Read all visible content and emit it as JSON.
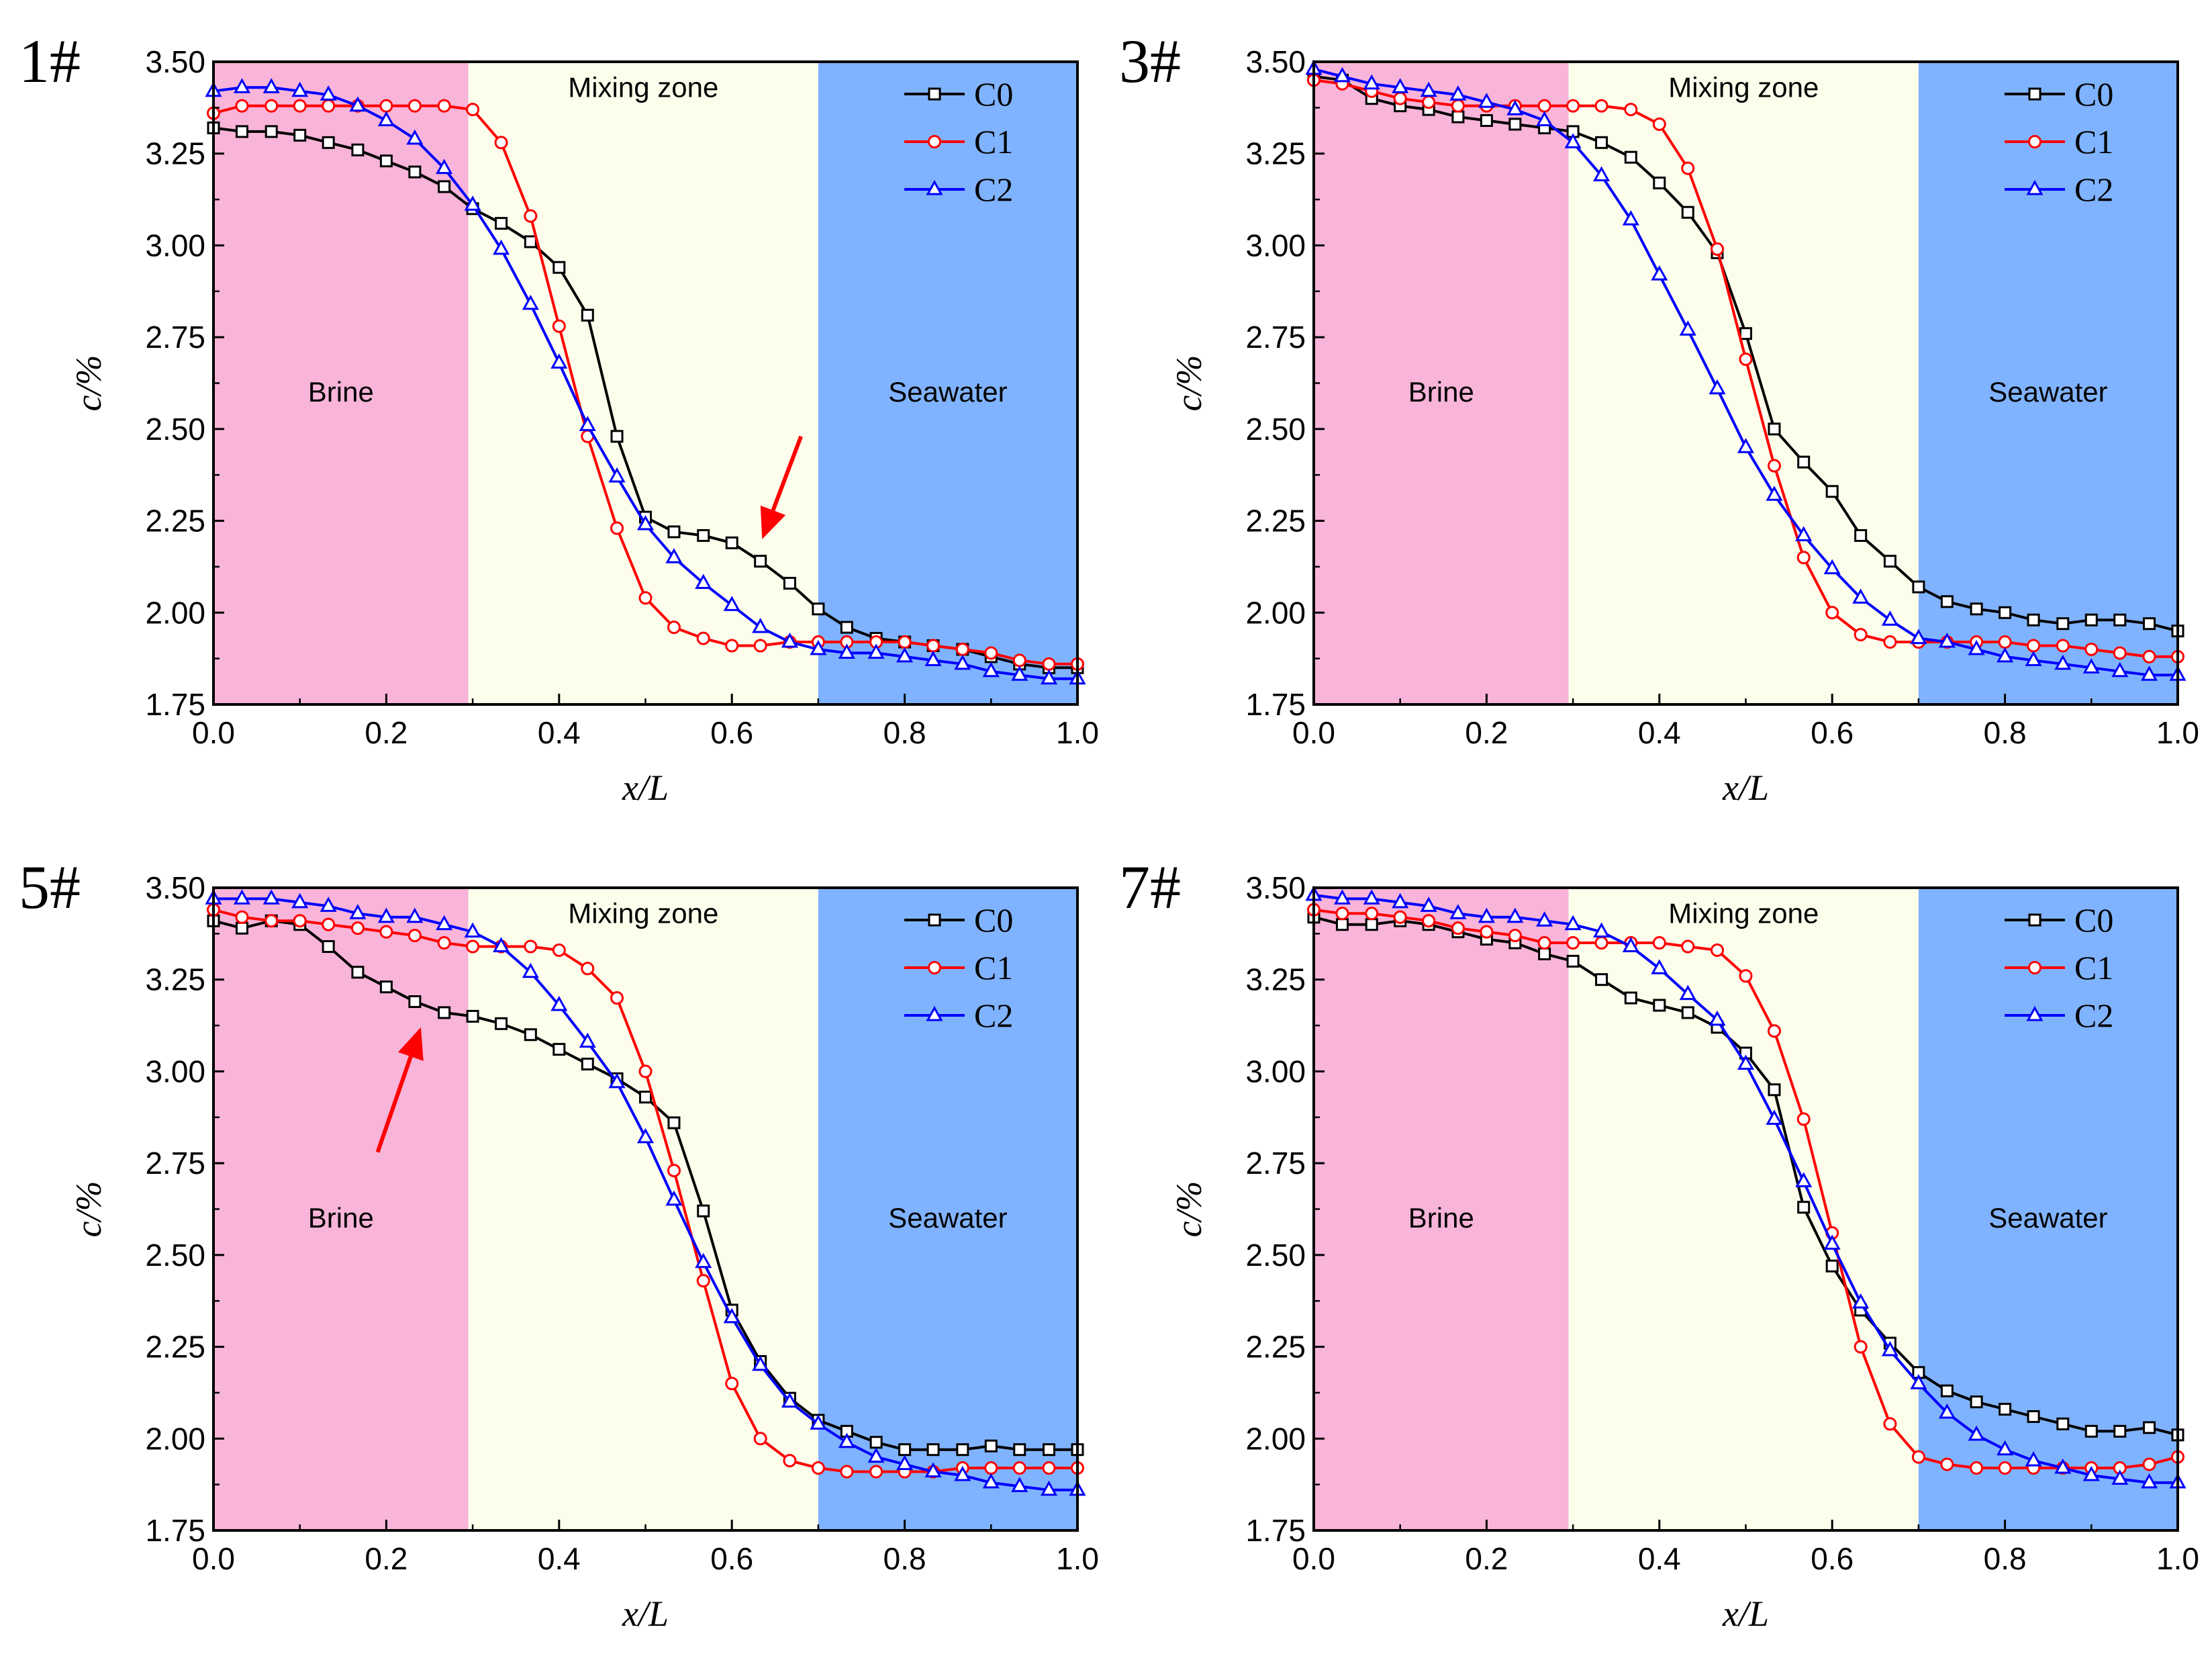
{
  "colors": {
    "brine": "#F8B4D9",
    "mixing": "#FDFDEC",
    "seawater": "#80B3FF",
    "C0": "#000000",
    "C1": "#FF0000",
    "C2": "#0000FF",
    "arrow": "#FF0000"
  },
  "chart_data": [
    {
      "type": "line",
      "panel_label": "1#",
      "xlabel": "x/L",
      "ylabel": "c/%",
      "xlim": [
        0.0,
        1.0
      ],
      "ylim": [
        1.75,
        3.5
      ],
      "xticks": [
        "0.0",
        "0.2",
        "0.4",
        "0.6",
        "0.8",
        "1.0"
      ],
      "yticks": [
        "1.75",
        "2.00",
        "2.25",
        "2.50",
        "2.75",
        "3.00",
        "3.25",
        "3.50"
      ],
      "regions": [
        {
          "name": "Brine",
          "from": 0.0,
          "to": 0.295,
          "color_key": "brine"
        },
        {
          "name": "Mixing zone",
          "from": 0.295,
          "to": 0.7,
          "color_key": "mixing"
        },
        {
          "name": "Seawater",
          "from": 0.7,
          "to": 1.0,
          "color_key": "seawater"
        }
      ],
      "legend": [
        "C0",
        "C1",
        "C2"
      ],
      "arrow": {
        "from": [
          0.68,
          2.48
        ],
        "to": [
          0.635,
          2.2
        ]
      },
      "x": [
        0.0,
        0.033,
        0.067,
        0.1,
        0.133,
        0.167,
        0.2,
        0.233,
        0.267,
        0.3,
        0.333,
        0.367,
        0.4,
        0.433,
        0.467,
        0.5,
        0.533,
        0.567,
        0.6,
        0.633,
        0.667,
        0.7,
        0.733,
        0.767,
        0.8,
        0.833,
        0.867,
        0.9,
        0.933,
        0.967,
        1.0
      ],
      "series": [
        {
          "name": "C0",
          "symbol": "square",
          "values": [
            3.32,
            3.31,
            3.31,
            3.3,
            3.28,
            3.26,
            3.23,
            3.2,
            3.16,
            3.1,
            3.06,
            3.01,
            2.94,
            2.81,
            2.48,
            2.26,
            2.22,
            2.21,
            2.19,
            2.14,
            2.08,
            2.01,
            1.96,
            1.93,
            1.92,
            1.91,
            1.9,
            1.88,
            1.86,
            1.85,
            1.85
          ]
        },
        {
          "name": "C1",
          "symbol": "circle",
          "values": [
            3.36,
            3.38,
            3.38,
            3.38,
            3.38,
            3.38,
            3.38,
            3.38,
            3.38,
            3.37,
            3.28,
            3.08,
            2.78,
            2.48,
            2.23,
            2.04,
            1.96,
            1.93,
            1.91,
            1.91,
            1.92,
            1.92,
            1.92,
            1.92,
            1.92,
            1.91,
            1.9,
            1.89,
            1.87,
            1.86,
            1.86
          ]
        },
        {
          "name": "C2",
          "symbol": "triangle",
          "values": [
            3.42,
            3.43,
            3.43,
            3.42,
            3.41,
            3.38,
            3.34,
            3.29,
            3.21,
            3.11,
            2.99,
            2.84,
            2.68,
            2.51,
            2.37,
            2.24,
            2.15,
            2.08,
            2.02,
            1.96,
            1.92,
            1.9,
            1.89,
            1.89,
            1.88,
            1.87,
            1.86,
            1.84,
            1.83,
            1.82,
            1.82
          ]
        }
      ]
    },
    {
      "type": "line",
      "panel_label": "3#",
      "xlabel": "x/L",
      "ylabel": "c/%",
      "xlim": [
        0.0,
        1.0
      ],
      "ylim": [
        1.75,
        3.5
      ],
      "xticks": [
        "0.0",
        "0.2",
        "0.4",
        "0.6",
        "0.8",
        "1.0"
      ],
      "yticks": [
        "1.75",
        "2.00",
        "2.25",
        "2.50",
        "2.75",
        "3.00",
        "3.25",
        "3.50"
      ],
      "regions": [
        {
          "name": "Brine",
          "from": 0.0,
          "to": 0.295,
          "color_key": "brine"
        },
        {
          "name": "Mixing zone",
          "from": 0.295,
          "to": 0.7,
          "color_key": "mixing"
        },
        {
          "name": "Seawater",
          "from": 0.7,
          "to": 1.0,
          "color_key": "seawater"
        }
      ],
      "legend": [
        "C0",
        "C1",
        "C2"
      ],
      "x": [
        0.0,
        0.033,
        0.067,
        0.1,
        0.133,
        0.167,
        0.2,
        0.233,
        0.267,
        0.3,
        0.333,
        0.367,
        0.4,
        0.433,
        0.467,
        0.5,
        0.533,
        0.567,
        0.6,
        0.633,
        0.667,
        0.7,
        0.733,
        0.767,
        0.8,
        0.833,
        0.867,
        0.9,
        0.933,
        0.967,
        1.0
      ],
      "series": [
        {
          "name": "C0",
          "symbol": "square",
          "values": [
            3.46,
            3.45,
            3.4,
            3.38,
            3.37,
            3.35,
            3.34,
            3.33,
            3.32,
            3.31,
            3.28,
            3.24,
            3.17,
            3.09,
            2.98,
            2.76,
            2.5,
            2.41,
            2.33,
            2.21,
            2.14,
            2.07,
            2.03,
            2.01,
            2.0,
            1.98,
            1.97,
            1.98,
            1.98,
            1.97,
            1.95
          ]
        },
        {
          "name": "C1",
          "symbol": "circle",
          "values": [
            3.45,
            3.44,
            3.42,
            3.4,
            3.39,
            3.38,
            3.38,
            3.38,
            3.38,
            3.38,
            3.38,
            3.37,
            3.33,
            3.21,
            2.99,
            2.69,
            2.4,
            2.15,
            2.0,
            1.94,
            1.92,
            1.92,
            1.92,
            1.92,
            1.92,
            1.91,
            1.91,
            1.9,
            1.89,
            1.88,
            1.88
          ]
        },
        {
          "name": "C2",
          "symbol": "triangle",
          "values": [
            3.48,
            3.46,
            3.44,
            3.43,
            3.42,
            3.41,
            3.39,
            3.37,
            3.34,
            3.28,
            3.19,
            3.07,
            2.92,
            2.77,
            2.61,
            2.45,
            2.32,
            2.21,
            2.12,
            2.04,
            1.98,
            1.93,
            1.92,
            1.9,
            1.88,
            1.87,
            1.86,
            1.85,
            1.84,
            1.83,
            1.83
          ]
        }
      ]
    },
    {
      "type": "line",
      "panel_label": "5#",
      "xlabel": "x/L",
      "ylabel": "c/%",
      "xlim": [
        0.0,
        1.0
      ],
      "ylim": [
        1.75,
        3.5
      ],
      "xticks": [
        "0.0",
        "0.2",
        "0.4",
        "0.6",
        "0.8",
        "1.0"
      ],
      "yticks": [
        "1.75",
        "2.00",
        "2.25",
        "2.50",
        "2.75",
        "3.00",
        "3.25",
        "3.50"
      ],
      "regions": [
        {
          "name": "Brine",
          "from": 0.0,
          "to": 0.295,
          "color_key": "brine"
        },
        {
          "name": "Mixing zone",
          "from": 0.295,
          "to": 0.7,
          "color_key": "mixing"
        },
        {
          "name": "Seawater",
          "from": 0.7,
          "to": 1.0,
          "color_key": "seawater"
        }
      ],
      "legend": [
        "C0",
        "C1",
        "C2"
      ],
      "arrow": {
        "from": [
          0.19,
          2.78
        ],
        "to": [
          0.24,
          3.12
        ]
      },
      "x": [
        0.0,
        0.033,
        0.067,
        0.1,
        0.133,
        0.167,
        0.2,
        0.233,
        0.267,
        0.3,
        0.333,
        0.367,
        0.4,
        0.433,
        0.467,
        0.5,
        0.533,
        0.567,
        0.6,
        0.633,
        0.667,
        0.7,
        0.733,
        0.767,
        0.8,
        0.833,
        0.867,
        0.9,
        0.933,
        0.967,
        1.0
      ],
      "series": [
        {
          "name": "C0",
          "symbol": "square",
          "values": [
            3.41,
            3.39,
            3.41,
            3.4,
            3.34,
            3.27,
            3.23,
            3.19,
            3.16,
            3.15,
            3.13,
            3.1,
            3.06,
            3.02,
            2.98,
            2.93,
            2.86,
            2.62,
            2.35,
            2.21,
            2.11,
            2.05,
            2.02,
            1.99,
            1.97,
            1.97,
            1.97,
            1.98,
            1.97,
            1.97,
            1.97
          ]
        },
        {
          "name": "C1",
          "symbol": "circle",
          "values": [
            3.44,
            3.42,
            3.41,
            3.41,
            3.4,
            3.39,
            3.38,
            3.37,
            3.35,
            3.34,
            3.34,
            3.34,
            3.33,
            3.28,
            3.2,
            3.0,
            2.73,
            2.43,
            2.15,
            2.0,
            1.94,
            1.92,
            1.91,
            1.91,
            1.91,
            1.91,
            1.92,
            1.92,
            1.92,
            1.92,
            1.92
          ]
        },
        {
          "name": "C2",
          "symbol": "triangle",
          "values": [
            3.47,
            3.47,
            3.47,
            3.46,
            3.45,
            3.43,
            3.42,
            3.42,
            3.4,
            3.38,
            3.34,
            3.27,
            3.18,
            3.08,
            2.97,
            2.82,
            2.65,
            2.48,
            2.33,
            2.2,
            2.1,
            2.04,
            1.99,
            1.95,
            1.93,
            1.91,
            1.9,
            1.88,
            1.87,
            1.86,
            1.86
          ]
        }
      ]
    },
    {
      "type": "line",
      "panel_label": "7#",
      "xlabel": "x/L",
      "ylabel": "c/%",
      "xlim": [
        0.0,
        1.0
      ],
      "ylim": [
        1.75,
        3.5
      ],
      "xticks": [
        "0.0",
        "0.2",
        "0.4",
        "0.6",
        "0.8",
        "1.0"
      ],
      "yticks": [
        "1.75",
        "2.00",
        "2.25",
        "2.50",
        "2.75",
        "3.00",
        "3.25",
        "3.50"
      ],
      "regions": [
        {
          "name": "Brine",
          "from": 0.0,
          "to": 0.295,
          "color_key": "brine"
        },
        {
          "name": "Mixing zone",
          "from": 0.295,
          "to": 0.7,
          "color_key": "mixing"
        },
        {
          "name": "Seawater",
          "from": 0.7,
          "to": 1.0,
          "color_key": "seawater"
        }
      ],
      "legend": [
        "C0",
        "C1",
        "C2"
      ],
      "x": [
        0.0,
        0.033,
        0.067,
        0.1,
        0.133,
        0.167,
        0.2,
        0.233,
        0.267,
        0.3,
        0.333,
        0.367,
        0.4,
        0.433,
        0.467,
        0.5,
        0.533,
        0.567,
        0.6,
        0.633,
        0.667,
        0.7,
        0.733,
        0.767,
        0.8,
        0.833,
        0.867,
        0.9,
        0.933,
        0.967,
        1.0
      ],
      "series": [
        {
          "name": "C0",
          "symbol": "square",
          "values": [
            3.42,
            3.4,
            3.4,
            3.41,
            3.4,
            3.38,
            3.36,
            3.35,
            3.32,
            3.3,
            3.25,
            3.2,
            3.18,
            3.16,
            3.12,
            3.05,
            2.95,
            2.63,
            2.47,
            2.35,
            2.26,
            2.18,
            2.13,
            2.1,
            2.08,
            2.06,
            2.04,
            2.02,
            2.02,
            2.03,
            2.01
          ]
        },
        {
          "name": "C1",
          "symbol": "circle",
          "values": [
            3.44,
            3.43,
            3.43,
            3.42,
            3.41,
            3.39,
            3.38,
            3.37,
            3.35,
            3.35,
            3.35,
            3.35,
            3.35,
            3.34,
            3.33,
            3.26,
            3.11,
            2.87,
            2.56,
            2.25,
            2.04,
            1.95,
            1.93,
            1.92,
            1.92,
            1.92,
            1.92,
            1.92,
            1.92,
            1.93,
            1.95
          ]
        },
        {
          "name": "C2",
          "symbol": "triangle",
          "values": [
            3.48,
            3.47,
            3.47,
            3.46,
            3.45,
            3.43,
            3.42,
            3.42,
            3.41,
            3.4,
            3.38,
            3.34,
            3.28,
            3.21,
            3.14,
            3.02,
            2.87,
            2.7,
            2.53,
            2.37,
            2.24,
            2.15,
            2.07,
            2.01,
            1.97,
            1.94,
            1.92,
            1.9,
            1.89,
            1.88,
            1.88
          ]
        }
      ]
    }
  ]
}
